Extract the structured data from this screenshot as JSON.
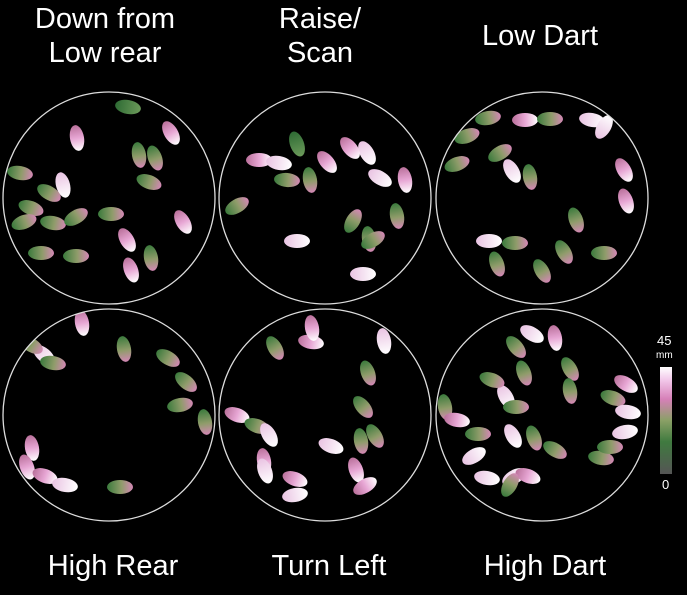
{
  "panels": [
    {
      "label": "Down from\nLow rear"
    },
    {
      "label": "Raise/\nScan"
    },
    {
      "label": "Low Dart"
    },
    {
      "label": "High Rear"
    },
    {
      "label": "Turn Left"
    },
    {
      "label": "High Dart"
    }
  ],
  "colorbar": {
    "max": "45",
    "unit": "mm",
    "min": "0",
    "colors": [
      "#555555",
      "#3f7a3f",
      "#8aa066",
      "#d680b8",
      "#f2c8ea",
      "#ffffff"
    ]
  },
  "colors": {
    "background": "#000000",
    "arena_ring": "#dddddd",
    "mouse_low": "#3e7a3e",
    "mouse_mid": "#c87aa8",
    "mouse_high": "#ffffff"
  }
}
